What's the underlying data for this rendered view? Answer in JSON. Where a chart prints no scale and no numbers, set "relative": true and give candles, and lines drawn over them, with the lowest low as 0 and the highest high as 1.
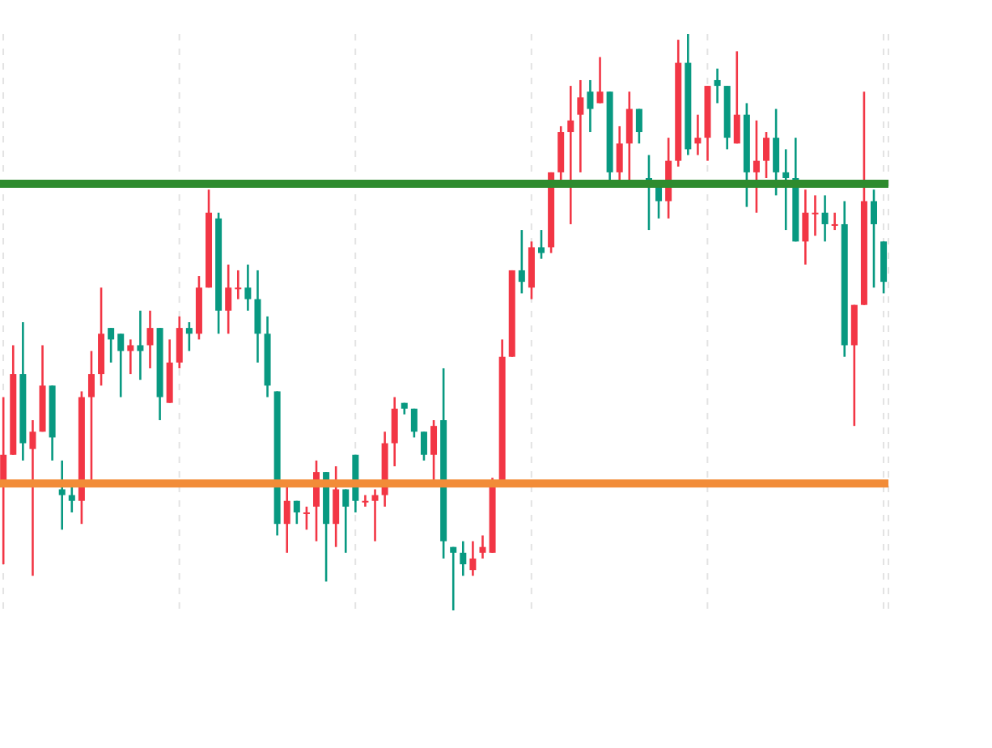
{
  "chart_data": {
    "type": "candlestick",
    "relative": true,
    "grid": "x",
    "categories": [
      null,
      null,
      null,
      null,
      null,
      null,
      null,
      null,
      null,
      null,
      null,
      null,
      null,
      null,
      null,
      null,
      null,
      null,
      null,
      null,
      null,
      null,
      null,
      null,
      null,
      null,
      null,
      null,
      null,
      null,
      null,
      null,
      null,
      null,
      null,
      null,
      null,
      null,
      null,
      null,
      null,
      null,
      null,
      null,
      null,
      null,
      null,
      null,
      null,
      null,
      null,
      null,
      null,
      null,
      null,
      null,
      null,
      null,
      null,
      null,
      null,
      null,
      null,
      null,
      null,
      null,
      null,
      null,
      null,
      null,
      null,
      null,
      null,
      null,
      null,
      null,
      null,
      null,
      null,
      null,
      null,
      null,
      null,
      null,
      null,
      null,
      null,
      null,
      null,
      null,
      null
    ],
    "ohlc": [
      [
        0.22,
        0.37,
        0.08,
        0.27
      ],
      [
        0.27,
        0.46,
        0.27,
        0.41
      ],
      [
        0.41,
        0.5,
        0.26,
        0.29
      ],
      [
        0.28,
        0.33,
        0.06,
        0.31
      ],
      [
        0.31,
        0.46,
        0.31,
        0.39
      ],
      [
        0.39,
        0.39,
        0.26,
        0.3
      ],
      [
        0.21,
        0.26,
        0.14,
        0.2
      ],
      [
        0.2,
        0.22,
        0.17,
        0.19
      ],
      [
        0.19,
        0.38,
        0.15,
        0.37
      ],
      [
        0.37,
        0.45,
        0.22,
        0.41
      ],
      [
        0.41,
        0.56,
        0.39,
        0.48
      ],
      [
        0.49,
        0.49,
        0.43,
        0.47
      ],
      [
        0.48,
        0.48,
        0.37,
        0.45
      ],
      [
        0.45,
        0.47,
        0.41,
        0.46
      ],
      [
        0.46,
        0.52,
        0.4,
        0.45
      ],
      [
        0.46,
        0.52,
        0.42,
        0.49
      ],
      [
        0.49,
        0.49,
        0.33,
        0.37
      ],
      [
        0.36,
        0.47,
        0.36,
        0.43
      ],
      [
        0.43,
        0.51,
        0.42,
        0.49
      ],
      [
        0.49,
        0.5,
        0.45,
        0.48
      ],
      [
        0.48,
        0.58,
        0.47,
        0.56
      ],
      [
        0.56,
        0.73,
        0.56,
        0.69
      ],
      [
        0.68,
        0.69,
        0.48,
        0.52
      ],
      [
        0.52,
        0.6,
        0.48,
        0.56
      ],
      [
        0.56,
        0.59,
        0.54,
        0.56
      ],
      [
        0.56,
        0.6,
        0.52,
        0.54
      ],
      [
        0.54,
        0.59,
        0.43,
        0.48
      ],
      [
        0.48,
        0.51,
        0.37,
        0.39
      ],
      [
        0.38,
        0.38,
        0.13,
        0.15
      ],
      [
        0.15,
        0.22,
        0.1,
        0.19
      ],
      [
        0.19,
        0.19,
        0.15,
        0.17
      ],
      [
        0.17,
        0.18,
        0.14,
        0.17
      ],
      [
        0.18,
        0.26,
        0.12,
        0.24
      ],
      [
        0.24,
        0.24,
        0.05,
        0.15
      ],
      [
        0.15,
        0.25,
        0.11,
        0.21
      ],
      [
        0.21,
        0.21,
        0.1,
        0.18
      ],
      [
        0.27,
        0.27,
        0.17,
        0.19
      ],
      [
        0.19,
        0.2,
        0.18,
        0.19
      ],
      [
        0.19,
        0.21,
        0.12,
        0.2
      ],
      [
        0.2,
        0.31,
        0.18,
        0.29
      ],
      [
        0.29,
        0.37,
        0.25,
        0.35
      ],
      [
        0.36,
        0.36,
        0.34,
        0.35
      ],
      [
        0.35,
        0.35,
        0.3,
        0.31
      ],
      [
        0.31,
        0.31,
        0.26,
        0.27
      ],
      [
        0.27,
        0.33,
        0.22,
        0.32
      ],
      [
        0.33,
        0.42,
        0.09,
        0.12
      ],
      [
        0.11,
        0.11,
        0,
        0.1
      ],
      [
        0.1,
        0.12,
        0.06,
        0.08
      ],
      [
        0.07,
        0.12,
        0.06,
        0.09
      ],
      [
        0.1,
        0.13,
        0.09,
        0.11
      ],
      [
        0.1,
        0.23,
        0.1,
        0.22
      ],
      [
        0.22,
        0.47,
        0.22,
        0.44
      ],
      [
        0.44,
        0.59,
        0.44,
        0.59
      ],
      [
        0.59,
        0.66,
        0.55,
        0.57
      ],
      [
        0.56,
        0.64,
        0.54,
        0.63
      ],
      [
        0.63,
        0.66,
        0.61,
        0.62
      ],
      [
        0.63,
        0.76,
        0.62,
        0.76
      ],
      [
        0.76,
        0.84,
        0.74,
        0.83
      ],
      [
        0.83,
        0.91,
        0.67,
        0.85
      ],
      [
        0.86,
        0.92,
        0.76,
        0.89
      ],
      [
        0.9,
        0.92,
        0.83,
        0.87
      ],
      [
        0.88,
        0.96,
        0.88,
        0.9
      ],
      [
        0.9,
        0.9,
        0.74,
        0.76
      ],
      [
        0.76,
        0.84,
        0.74,
        0.81
      ],
      [
        0.81,
        0.9,
        0.74,
        0.87
      ],
      [
        0.87,
        0.87,
        0.81,
        0.83
      ],
      [
        0.75,
        0.79,
        0.66,
        0.74
      ],
      [
        0.74,
        0.74,
        0.68,
        0.71
      ],
      [
        0.71,
        0.82,
        0.68,
        0.78
      ],
      [
        0.78,
        0.99,
        0.77,
        0.95
      ],
      [
        0.95,
        1,
        0.79,
        0.8
      ],
      [
        0.81,
        0.86,
        0.79,
        0.82
      ],
      [
        0.82,
        0.91,
        0.78,
        0.91
      ],
      [
        0.92,
        0.94,
        0.88,
        0.91
      ],
      [
        0.91,
        0.91,
        0.8,
        0.82
      ],
      [
        0.81,
        0.97,
        0.81,
        0.86
      ],
      [
        0.86,
        0.88,
        0.7,
        0.76
      ],
      [
        0.76,
        0.85,
        0.69,
        0.78
      ],
      [
        0.78,
        0.83,
        0.75,
        0.82
      ],
      [
        0.82,
        0.87,
        0.72,
        0.76
      ],
      [
        0.76,
        0.8,
        0.66,
        0.75
      ],
      [
        0.75,
        0.82,
        0.64,
        0.64
      ],
      [
        0.64,
        0.73,
        0.6,
        0.69
      ],
      [
        0.69,
        0.72,
        0.65,
        0.69
      ],
      [
        0.69,
        0.72,
        0.64,
        0.67
      ],
      [
        0.67,
        0.69,
        0.66,
        0.67
      ],
      [
        0.67,
        0.71,
        0.44,
        0.46
      ],
      [
        0.46,
        0.53,
        0.32,
        0.53
      ],
      [
        0.53,
        0.9,
        0.53,
        0.71
      ],
      [
        0.71,
        0.73,
        0.56,
        0.67
      ],
      [
        0.64,
        0.64,
        0.55,
        0.57
      ]
    ],
    "colors": [
      "#f23645",
      "#f23645",
      "#089981",
      "#f23645",
      "#f23645",
      "#089981",
      "#089981",
      "#089981",
      "#f23645",
      "#f23645",
      "#f23645",
      "#089981",
      "#089981",
      "#f23645",
      "#089981",
      "#f23645",
      "#089981",
      "#f23645",
      "#f23645",
      "#089981",
      "#f23645",
      "#f23645",
      "#089981",
      "#f23645",
      "#f23645",
      "#089981",
      "#089981",
      "#089981",
      "#089981",
      "#f23645",
      "#089981",
      "#f23645",
      "#f23645",
      "#089981",
      "#f23645",
      "#089981",
      "#089981",
      "#f23645",
      "#f23645",
      "#f23645",
      "#f23645",
      "#089981",
      "#089981",
      "#089981",
      "#f23645",
      "#089981",
      "#089981",
      "#089981",
      "#f23645",
      "#f23645",
      "#f23645",
      "#f23645",
      "#f23645",
      "#089981",
      "#f23645",
      "#089981",
      "#f23645",
      "#f23645",
      "#f23645",
      "#f23645",
      "#089981",
      "#f23645",
      "#089981",
      "#f23645",
      "#f23645",
      "#089981",
      "#089981",
      "#089981",
      "#f23645",
      "#f23645",
      "#089981",
      "#f23645",
      "#f23645",
      "#089981",
      "#089981",
      "#f23645",
      "#089981",
      "#f23645",
      "#f23645",
      "#089981",
      "#089981",
      "#089981",
      "#f23645",
      "#f23645",
      "#089981",
      "#f23645",
      "#089981",
      "#f23645",
      "#f23645",
      "#089981",
      "#089981"
    ],
    "ref_lines": [
      {
        "axis": "y",
        "value": 0.74,
        "color": "#2e8b2e"
      },
      {
        "axis": "y",
        "value": 0.22,
        "color": "#f28c38"
      }
    ]
  }
}
